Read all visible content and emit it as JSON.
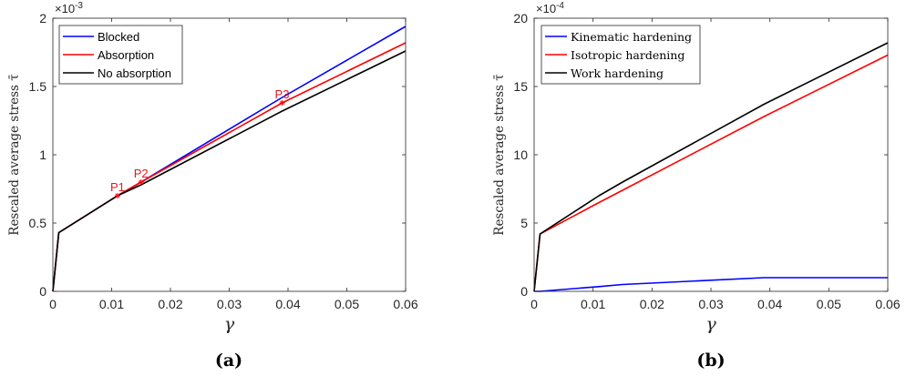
{
  "chart_data": [
    {
      "type": "line",
      "caption": "(a)",
      "multiplier": "×10",
      "multiplier_exp": "-3",
      "ylabel": "Rescaled average stress τ̄",
      "xlabel": "γ",
      "xlim": [
        0,
        0.06
      ],
      "ylim": [
        0,
        2
      ],
      "xticks": [
        "0",
        "0.01",
        "0.02",
        "0.03",
        "0.04",
        "0.05",
        "0.06"
      ],
      "yticks": [
        "0",
        "0.5",
        "1",
        "1.5",
        "2"
      ],
      "legend_position": "top-left",
      "legend_font": "sans",
      "series": [
        {
          "name": "Blocked",
          "color": "#0000ff",
          "x": [
            0,
            0.001,
            0.011,
            0.015,
            0.039,
            0.06
          ],
          "y": [
            0,
            0.43,
            0.7,
            0.8,
            1.42,
            1.94
          ]
        },
        {
          "name": "Absorption",
          "color": "#ff0000",
          "x": [
            0,
            0.001,
            0.011,
            0.015,
            0.039,
            0.06
          ],
          "y": [
            0,
            0.43,
            0.7,
            0.8,
            1.38,
            1.82
          ]
        },
        {
          "name": "No absorption",
          "color": "#000000",
          "x": [
            0,
            0.001,
            0.011,
            0.015,
            0.039,
            0.06
          ],
          "y": [
            0,
            0.43,
            0.7,
            0.78,
            1.32,
            1.76
          ]
        }
      ],
      "annotations": [
        {
          "label": "P1",
          "x": 0.011,
          "y": 0.7
        },
        {
          "label": "P2",
          "x": 0.015,
          "y": 0.8
        },
        {
          "label": "P3",
          "x": 0.039,
          "y": 1.38
        }
      ]
    },
    {
      "type": "line",
      "caption": "(b)",
      "multiplier": "×10",
      "multiplier_exp": "-4",
      "ylabel": "Rescaled average stress τ̄",
      "xlabel": "γ",
      "xlim": [
        0,
        0.06
      ],
      "ylim": [
        0,
        20
      ],
      "xticks": [
        "0",
        "0.01",
        "0.02",
        "0.03",
        "0.04",
        "0.05",
        "0.06"
      ],
      "yticks": [
        "0",
        "5",
        "10",
        "15",
        "20"
      ],
      "legend_position": "top-left",
      "legend_font": "serif",
      "series": [
        {
          "name": "Kinematic hardening",
          "color": "#0000ff",
          "x": [
            0,
            0.001,
            0.011,
            0.015,
            0.039,
            0.06
          ],
          "y": [
            0,
            0,
            0.35,
            0.5,
            1.0,
            1.0
          ]
        },
        {
          "name": "Isotropic hardening",
          "color": "#ff0000",
          "x": [
            0,
            0.001,
            0.011,
            0.015,
            0.039,
            0.06
          ],
          "y": [
            0,
            4.2,
            6.5,
            7.4,
            12.8,
            17.3
          ]
        },
        {
          "name": "Work hardening",
          "color": "#000000",
          "x": [
            0,
            0.001,
            0.011,
            0.015,
            0.039,
            0.06
          ],
          "y": [
            0,
            4.2,
            7.0,
            8.0,
            13.7,
            18.2
          ]
        }
      ],
      "annotations": []
    }
  ]
}
